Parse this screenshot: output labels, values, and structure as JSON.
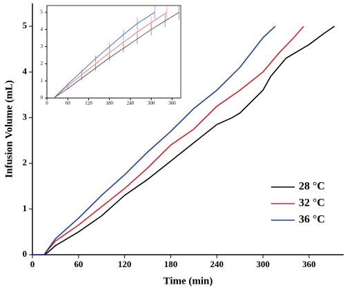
{
  "chart_data": [
    {
      "type": "line",
      "x_label": "Time (min)",
      "y_label": "Infusion Volume (mL)",
      "xlim": [
        0,
        405
      ],
      "ylim": [
        0,
        5.5
      ],
      "xticks": [
        0,
        60,
        120,
        180,
        240,
        300,
        360
      ],
      "yticks": [
        0,
        1,
        2,
        3,
        4,
        5
      ],
      "legend": "lower right",
      "series": [
        {
          "name": "28 °C",
          "color": "#000000",
          "x": [
            0,
            15,
            20,
            30,
            60,
            90,
            120,
            150,
            180,
            210,
            240,
            260,
            270,
            300,
            310,
            330,
            360,
            380,
            393
          ],
          "values": [
            0,
            0,
            0.05,
            0.2,
            0.5,
            0.85,
            1.3,
            1.65,
            2.05,
            2.45,
            2.85,
            3.0,
            3.1,
            3.6,
            3.9,
            4.3,
            4.6,
            4.85,
            5.0
          ]
        },
        {
          "name": "32 °C",
          "color": "#d0202a",
          "x": [
            0,
            15,
            30,
            60,
            90,
            120,
            150,
            180,
            210,
            240,
            270,
            300,
            320,
            340,
            353
          ],
          "values": [
            0,
            0,
            0.3,
            0.65,
            1.05,
            1.45,
            1.9,
            2.4,
            2.75,
            3.25,
            3.6,
            4.0,
            4.4,
            4.75,
            5.0
          ]
        },
        {
          "name": "36 °C",
          "color": "#1f3a93",
          "x": [
            0,
            15,
            30,
            60,
            90,
            120,
            150,
            180,
            210,
            240,
            270,
            300,
            316
          ],
          "values": [
            0,
            0,
            0.35,
            0.8,
            1.3,
            1.75,
            2.25,
            2.7,
            3.2,
            3.6,
            4.1,
            4.75,
            5.0
          ]
        }
      ]
    },
    {
      "type": "line",
      "xlim": [
        0,
        385
      ],
      "ylim": [
        0,
        5.4
      ],
      "xticks": [
        0,
        60,
        120,
        180,
        240,
        300,
        360
      ],
      "yticks": [
        0,
        1,
        2,
        3,
        4,
        5
      ],
      "series": [
        {
          "color": "#555555",
          "x": [
            20,
            60,
            100,
            140,
            180,
            220,
            260,
            300,
            340,
            380
          ],
          "values": [
            0,
            0.55,
            1.15,
            1.75,
            2.35,
            2.9,
            3.45,
            4.0,
            4.5,
            5.0
          ],
          "errors": [
            0.02,
            0.08,
            0.12,
            0.16,
            0.2,
            0.25,
            0.3,
            0.35,
            0.38,
            0.42
          ]
        },
        {
          "color": "#e87a7a",
          "x": [
            20,
            60,
            100,
            140,
            180,
            220,
            260,
            300,
            345
          ],
          "values": [
            0,
            0.7,
            1.35,
            2.0,
            2.65,
            3.25,
            3.85,
            4.4,
            5.0
          ],
          "errors": [
            0.02,
            0.08,
            0.12,
            0.16,
            0.2,
            0.25,
            0.3,
            0.35,
            0.4
          ]
        },
        {
          "color": "#4a6fc9",
          "x": [
            20,
            60,
            100,
            140,
            180,
            220,
            260,
            310
          ],
          "values": [
            0,
            0.8,
            1.55,
            2.3,
            3.0,
            3.7,
            4.35,
            5.0
          ],
          "errors": [
            0.02,
            0.08,
            0.12,
            0.18,
            0.22,
            0.28,
            0.34,
            0.4
          ]
        }
      ]
    }
  ]
}
